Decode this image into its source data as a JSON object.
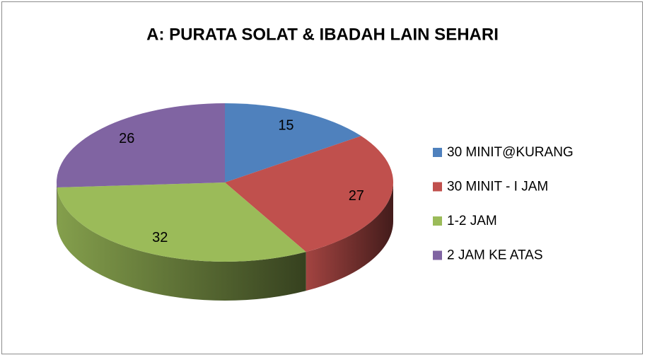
{
  "chart_data": {
    "type": "pie3d",
    "title": "A: PURATA SOLAT & IBADAH LAIN SEHARI",
    "categories": [
      "30 MINIT@KURANG",
      "30 MINIT - I JAM",
      "1-2 JAM",
      "2 JAM KE ATAS"
    ],
    "values": [
      15,
      27,
      32,
      26
    ],
    "colors": [
      "#4f81bd",
      "#c0504d",
      "#9bbb59",
      "#8064a2"
    ],
    "legend": "right"
  }
}
